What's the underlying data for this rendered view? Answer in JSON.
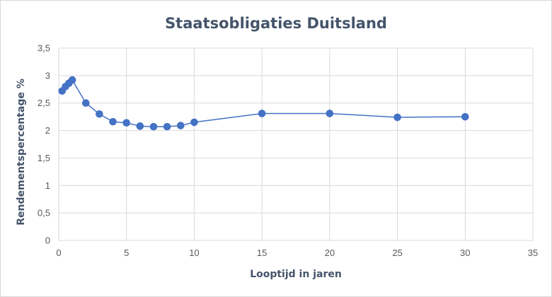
{
  "chart_data": {
    "type": "scatter",
    "title": "Staatsobligaties Duitsland",
    "xlabel": "Looptijd in jaren",
    "ylabel": "Rendementspercentage %",
    "xlim": [
      0,
      35
    ],
    "ylim": [
      0,
      3.5
    ],
    "x_ticks": [
      "0",
      "5",
      "10",
      "15",
      "20",
      "25",
      "30",
      "35"
    ],
    "y_ticks": [
      "0",
      "0,5",
      "1",
      "1,5",
      "2",
      "2,5",
      "3",
      "3,5"
    ],
    "grid": true,
    "legend": "none",
    "series": [
      {
        "color": "#4472c4",
        "x": [
          0.25,
          0.5,
          0.75,
          1,
          2,
          3,
          4,
          5,
          6,
          7,
          8,
          9,
          10,
          15,
          20,
          25,
          30
        ],
        "y": [
          2.72,
          2.8,
          2.86,
          2.92,
          2.5,
          2.3,
          2.16,
          2.14,
          2.08,
          2.07,
          2.07,
          2.09,
          2.15,
          2.31,
          2.31,
          2.24,
          2.25
        ]
      }
    ]
  }
}
